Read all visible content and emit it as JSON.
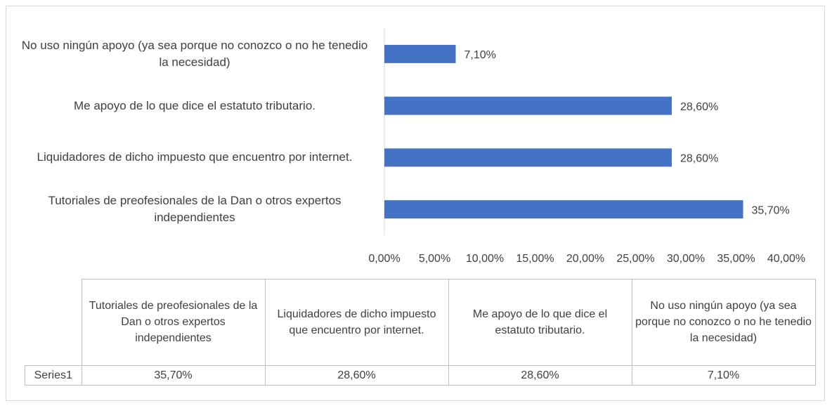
{
  "chart_data": {
    "type": "bar",
    "orientation": "horizontal",
    "categories": [
      "Tutoriales de preofesionales de la Dan o otros expertos independientes",
      "Liquidadores de dicho impuesto que encuentro por internet.",
      "Me apoyo de lo que dice el estatuto tributario.",
      "No uso ningún apoyo (ya sea porque no conozco o no he tenedio la necesidad)"
    ],
    "series": [
      {
        "name": "Series1",
        "color": "#4472c4",
        "values": [
          35.7,
          28.6,
          28.6,
          7.1
        ],
        "value_labels": [
          "35,70%",
          "28,60%",
          "28,60%",
          "7,10%"
        ]
      }
    ],
    "xlim": [
      0,
      40
    ],
    "xticks": [
      {
        "value": 0,
        "label": "0,00%"
      },
      {
        "value": 5,
        "label": "5,00%"
      },
      {
        "value": 10,
        "label": "10,00%"
      },
      {
        "value": 15,
        "label": "15,00%"
      },
      {
        "value": 20,
        "label": "20,00%"
      },
      {
        "value": 25,
        "label": "25,00%"
      },
      {
        "value": 30,
        "label": "30,00%"
      },
      {
        "value": 35,
        "label": "35,00%"
      },
      {
        "value": 40,
        "label": "40,00%"
      }
    ],
    "data_table": true
  }
}
